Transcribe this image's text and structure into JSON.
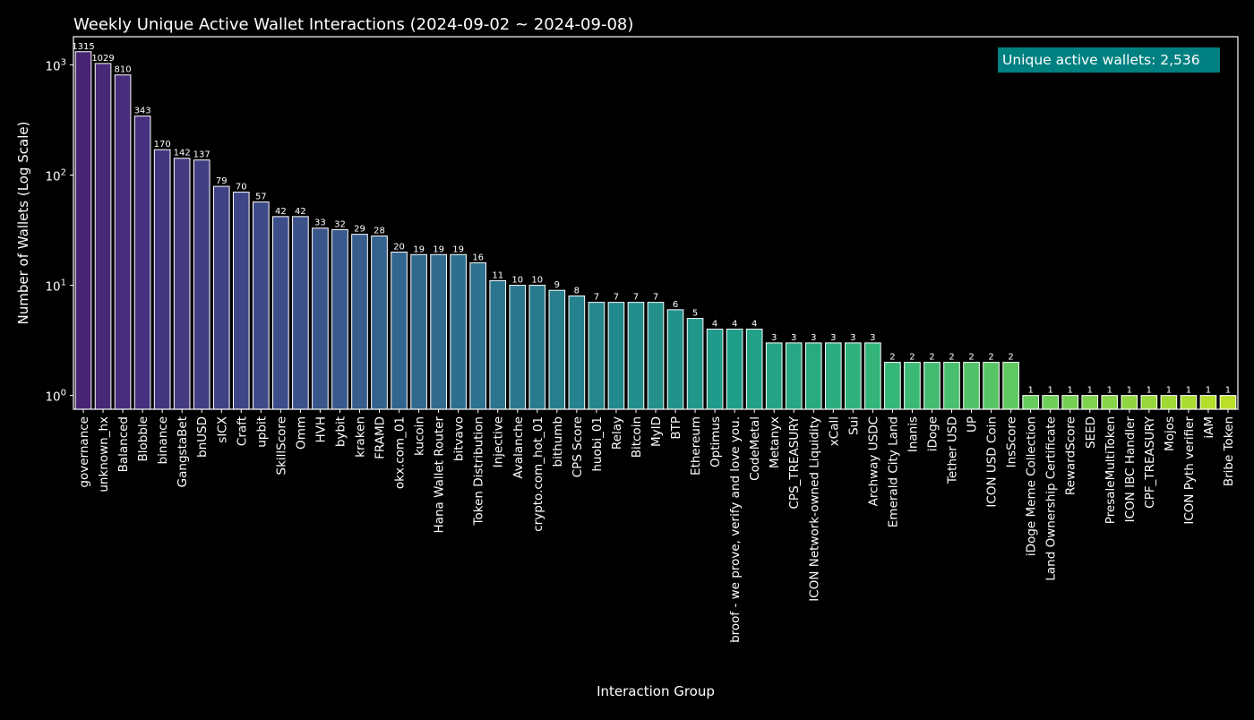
{
  "chart_data": {
    "type": "bar",
    "title": "Weekly Unique Active Wallet Interactions (2024-09-02 ~ 2024-09-08)",
    "xlabel": "Interaction Group",
    "ylabel": "Number of Wallets (Log Scale)",
    "yscale": "log",
    "ylim": [
      0.75,
      1800
    ],
    "ytick_values": [
      1,
      10,
      100,
      1000
    ],
    "ytick_exponents": [
      "0",
      "1",
      "2",
      "3"
    ],
    "ytick_base": "10",
    "grid": false,
    "colormap": "viridis",
    "bar_edge_color": "#ffffff",
    "background_color": "#000000",
    "annotation": {
      "text": "Unique active wallets: 2,536",
      "background": "#008080",
      "placement": "top-right"
    },
    "categories": [
      "governance",
      "unknown_hx",
      "Balanced",
      "Blobble",
      "binance",
      "GangstaBet",
      "bnUSD",
      "sICX",
      "Craft",
      "upbit",
      "SkillScore",
      "Omm",
      "HVH",
      "bybit",
      "kraken",
      "FRAMD",
      "okx.com_01",
      "kucoin",
      "Hana Wallet Router",
      "bitvavo",
      "Token Distribution",
      "Injective",
      "Avalanche",
      "crypto.com_hot_01",
      "bithumb",
      "CPS Score",
      "huobi_01",
      "Relay",
      "Bitcoin",
      "MyID",
      "BTP",
      "Ethereum",
      "Optimus",
      "broof - we prove, verify and love you.",
      "CodeMetal",
      "Metanyx",
      "CPS_TREASURY",
      "ICON Network-owned Liquidity",
      "xCall",
      "Sui",
      "Archway USDC",
      "Emerald City Land",
      "Inanis",
      "iDoge",
      "Tether USD",
      "UP",
      "ICON USD Coin",
      "InsScore",
      "iDoge Meme Collection",
      "Land Ownership Certificate",
      "RewardScore",
      "SEED",
      "PresaleMultiToken",
      "ICON IBC Handler",
      "CPF_TREASURY",
      "Mojos",
      "ICON Pyth verifier",
      "iAM",
      "Bribe Token"
    ],
    "values": [
      1315,
      1029,
      810,
      343,
      170,
      142,
      137,
      79,
      70,
      57,
      42,
      42,
      33,
      32,
      29,
      28,
      20,
      19,
      19,
      19,
      16,
      11,
      10,
      10,
      9,
      8,
      7,
      7,
      7,
      7,
      6,
      5,
      4,
      4,
      4,
      3,
      3,
      3,
      3,
      3,
      3,
      2,
      2,
      2,
      2,
      2,
      2,
      2,
      1,
      1,
      1,
      1,
      1,
      1,
      1,
      1,
      1,
      1,
      1
    ]
  }
}
